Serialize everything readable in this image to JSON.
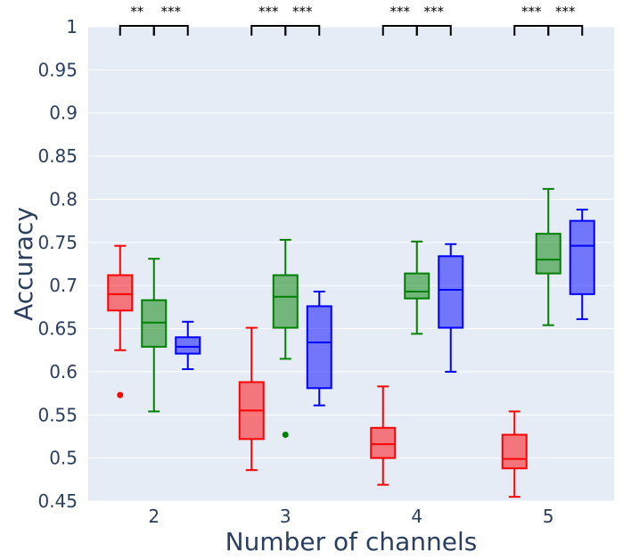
{
  "chart_data": {
    "type": "box",
    "xlabel": "Number of channels",
    "ylabel": "Accuracy",
    "categories": [
      "2",
      "3",
      "4",
      "5"
    ],
    "ylim": [
      0.45,
      1.0
    ],
    "yticks": [
      "0.45",
      "0.5",
      "0.55",
      "0.6",
      "0.65",
      "0.7",
      "0.75",
      "0.8",
      "0.85",
      "0.9",
      "0.95",
      "1"
    ],
    "grid": true,
    "legend": "none",
    "colors": {
      "plot_bg": "#e5ecf6",
      "grid": "#ffffff",
      "text": "#2a3f5f",
      "bracket": "#000000"
    },
    "series": [
      {
        "color": "#ff0000",
        "fill": "rgba(255,0,0,0.5)",
        "boxes": [
          {
            "category": "2",
            "min": 0.625,
            "q1": 0.671,
            "median": 0.69,
            "q3": 0.712,
            "max": 0.746,
            "outliers": [
              0.573
            ]
          },
          {
            "category": "3",
            "min": 0.486,
            "q1": 0.522,
            "median": 0.555,
            "q3": 0.588,
            "max": 0.651,
            "outliers": []
          },
          {
            "category": "4",
            "min": 0.469,
            "q1": 0.5,
            "median": 0.516,
            "q3": 0.535,
            "max": 0.583,
            "outliers": []
          },
          {
            "category": "5",
            "min": 0.455,
            "q1": 0.488,
            "median": 0.499,
            "q3": 0.527,
            "max": 0.554,
            "outliers": []
          }
        ]
      },
      {
        "color": "#008000",
        "fill": "rgba(0,128,0,0.5)",
        "boxes": [
          {
            "category": "2",
            "min": 0.554,
            "q1": 0.629,
            "median": 0.657,
            "q3": 0.683,
            "max": 0.731,
            "outliers": []
          },
          {
            "category": "3",
            "min": 0.615,
            "q1": 0.651,
            "median": 0.687,
            "q3": 0.712,
            "max": 0.753,
            "outliers": [
              0.527
            ]
          },
          {
            "category": "4",
            "min": 0.644,
            "q1": 0.685,
            "median": 0.693,
            "q3": 0.714,
            "max": 0.751,
            "outliers": []
          },
          {
            "category": "5",
            "min": 0.654,
            "q1": 0.714,
            "median": 0.73,
            "q3": 0.76,
            "max": 0.812,
            "outliers": []
          }
        ]
      },
      {
        "color": "#0000ff",
        "fill": "rgba(0,0,255,0.5)",
        "boxes": [
          {
            "category": "2",
            "min": 0.603,
            "q1": 0.621,
            "median": 0.629,
            "q3": 0.64,
            "max": 0.658,
            "outliers": []
          },
          {
            "category": "3",
            "min": 0.561,
            "q1": 0.581,
            "median": 0.634,
            "q3": 0.676,
            "max": 0.693,
            "outliers": []
          },
          {
            "category": "4",
            "min": 0.6,
            "q1": 0.651,
            "median": 0.695,
            "q3": 0.734,
            "max": 0.748,
            "outliers": []
          },
          {
            "category": "5",
            "min": 0.661,
            "q1": 0.69,
            "median": 0.746,
            "q3": 0.775,
            "max": 0.788,
            "outliers": []
          }
        ]
      }
    ],
    "annotations": [
      {
        "category": "2",
        "from": 0,
        "to": 1,
        "text": "**"
      },
      {
        "category": "2",
        "from": 1,
        "to": 2,
        "text": "***"
      },
      {
        "category": "3",
        "from": 0,
        "to": 1,
        "text": "***"
      },
      {
        "category": "3",
        "from": 1,
        "to": 2,
        "text": "***"
      },
      {
        "category": "4",
        "from": 0,
        "to": 1,
        "text": "***"
      },
      {
        "category": "4",
        "from": 1,
        "to": 2,
        "text": "***"
      },
      {
        "category": "5",
        "from": 0,
        "to": 1,
        "text": "***"
      },
      {
        "category": "5",
        "from": 1,
        "to": 2,
        "text": "***"
      }
    ]
  }
}
